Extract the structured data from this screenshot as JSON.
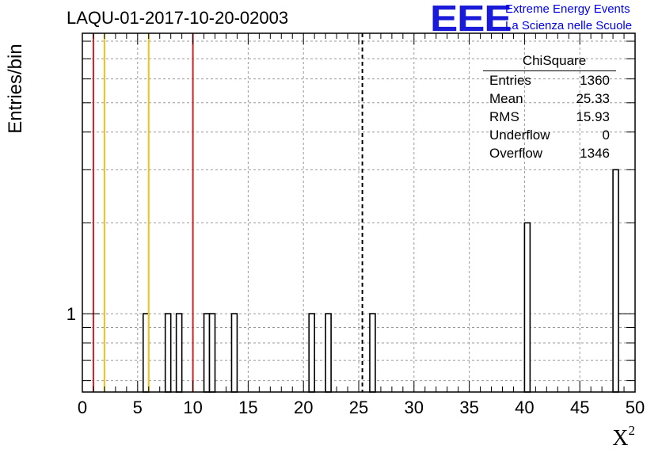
{
  "chart_data": {
    "type": "bar",
    "title": "LAQU-01-2017-10-20-02003",
    "xlabel_base": "X",
    "xlabel_sup": "2",
    "ylabel": "Entries/bin",
    "xlim": [
      0,
      50
    ],
    "ylog": true,
    "ylim": [
      0.55,
      8.5
    ],
    "bin_width": 0.5,
    "x_ticks": [
      "0",
      "5",
      "10",
      "15",
      "20",
      "25",
      "30",
      "35",
      "40",
      "45",
      "50"
    ],
    "y_ticks": [
      "1"
    ],
    "grid": true,
    "bins": [
      {
        "x": 5.5,
        "value": 1
      },
      {
        "x": 7.5,
        "value": 1
      },
      {
        "x": 8.5,
        "value": 1
      },
      {
        "x": 11.0,
        "value": 1
      },
      {
        "x": 11.5,
        "value": 1
      },
      {
        "x": 13.5,
        "value": 1
      },
      {
        "x": 20.5,
        "value": 1
      },
      {
        "x": 22.0,
        "value": 1
      },
      {
        "x": 26.0,
        "value": 1
      },
      {
        "x": 40.0,
        "value": 2
      },
      {
        "x": 48.0,
        "value": 3
      }
    ],
    "vertical_lines": [
      {
        "x": 1.0,
        "color": "#d42020",
        "style": "solid"
      },
      {
        "x": 2.0,
        "color": "#f2c216",
        "style": "solid"
      },
      {
        "x": 6.0,
        "color": "#f2c216",
        "style": "solid"
      },
      {
        "x": 10.0,
        "color": "#d42020",
        "style": "solid"
      },
      {
        "x": 25.33,
        "color": "#000000",
        "style": "dashed"
      }
    ],
    "stats": {
      "title": "ChiSquare",
      "rows": [
        {
          "label": "Entries",
          "value": "1360"
        },
        {
          "label": "Mean",
          "value": "25.33"
        },
        {
          "label": "RMS",
          "value": "15.93"
        },
        {
          "label": "Underflow",
          "value": "0"
        },
        {
          "label": "Overflow",
          "value": "1346"
        }
      ]
    }
  },
  "logo": {
    "mark": "EEE",
    "line1": "Extreme Energy Events",
    "line2": "La Scienza nelle Scuole",
    "color": "#1a1ad9"
  }
}
